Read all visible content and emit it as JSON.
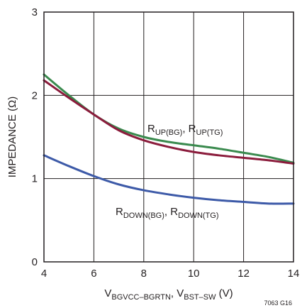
{
  "chart_data": {
    "type": "line",
    "title": "",
    "xlabel": {
      "parts": [
        {
          "t": "V",
          "sub": false
        },
        {
          "t": "BGVCC–BGRTN",
          "sub": true
        },
        {
          "t": ", V",
          "sub": false
        },
        {
          "t": "BST–SW",
          "sub": true
        },
        {
          "t": " (V)",
          "sub": false
        }
      ]
    },
    "ylabel": "IMPEDANCE (Ω)",
    "xlim": [
      4,
      14
    ],
    "ylim": [
      0,
      3
    ],
    "xticks": [
      "4",
      "6",
      "8",
      "10",
      "12",
      "14"
    ],
    "yticks": [
      "0",
      "1",
      "2",
      "3"
    ],
    "grid": true,
    "series": [
      {
        "key": "r_up_bg",
        "color": "#3a8a4e",
        "x": [
          4,
          5,
          6,
          7,
          8,
          9,
          10,
          11,
          12,
          13,
          14
        ],
        "y": [
          2.25,
          2.0,
          1.77,
          1.6,
          1.5,
          1.44,
          1.4,
          1.36,
          1.31,
          1.26,
          1.19
        ]
      },
      {
        "key": "r_up_tg",
        "color": "#8b1c3c",
        "x": [
          4,
          5,
          6,
          7,
          8,
          9,
          10,
          11,
          12,
          13,
          14
        ],
        "y": [
          2.18,
          1.97,
          1.77,
          1.58,
          1.46,
          1.38,
          1.32,
          1.28,
          1.25,
          1.22,
          1.18
        ]
      },
      {
        "key": "r_down",
        "color": "#3d5aa8",
        "x": [
          4,
          5,
          6,
          7,
          8,
          9,
          10,
          11,
          12,
          13,
          14
        ],
        "y": [
          1.28,
          1.15,
          1.03,
          0.93,
          0.86,
          0.81,
          0.77,
          0.74,
          0.72,
          0.7,
          0.7
        ]
      }
    ],
    "annotations": [
      {
        "key": "up",
        "parts": [
          {
            "t": "R",
            "sub": false
          },
          {
            "t": "UP(BG)",
            "sub": true
          },
          {
            "t": ", R",
            "sub": false
          },
          {
            "t": "UP(TG)",
            "sub": true
          }
        ]
      },
      {
        "key": "down",
        "parts": [
          {
            "t": "R",
            "sub": false
          },
          {
            "t": "DOWN(BG)",
            "sub": true
          },
          {
            "t": ", R",
            "sub": false
          },
          {
            "t": "DOWN(TG)",
            "sub": true
          }
        ]
      }
    ],
    "figure_code": "7063 G16"
  }
}
